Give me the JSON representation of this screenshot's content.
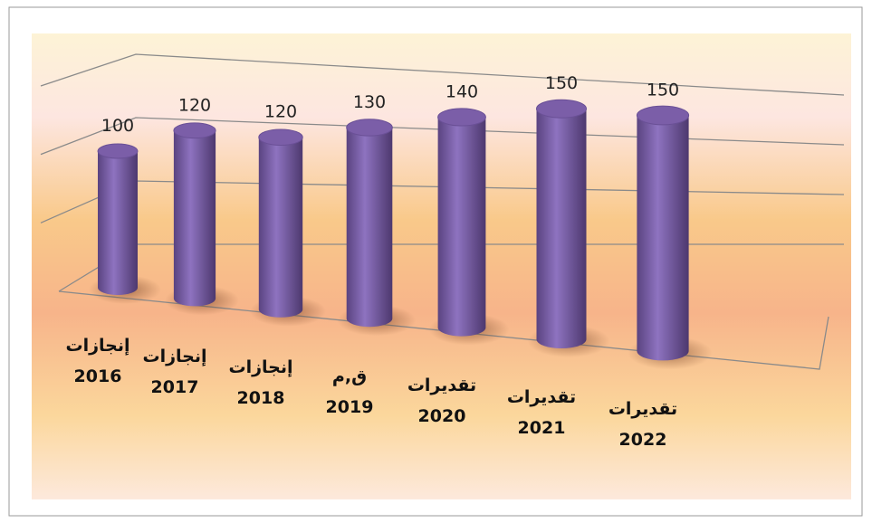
{
  "chart_data": {
    "type": "bar",
    "categories": [
      [
        "إنجازات",
        "2016"
      ],
      [
        "إنجازات",
        "2017"
      ],
      [
        "إنجازات",
        "2018"
      ],
      [
        "ق,م",
        "2019"
      ],
      [
        "تقديرات",
        "2020"
      ],
      [
        "تقديرات",
        "2021"
      ],
      [
        "تقديرات",
        "2022"
      ]
    ],
    "values": [
      100,
      120,
      120,
      130,
      140,
      150,
      150
    ],
    "color": "#7b5ea8",
    "ylim": [
      0,
      150
    ],
    "yticks": [
      0,
      50,
      100,
      150
    ],
    "grid": true
  }
}
